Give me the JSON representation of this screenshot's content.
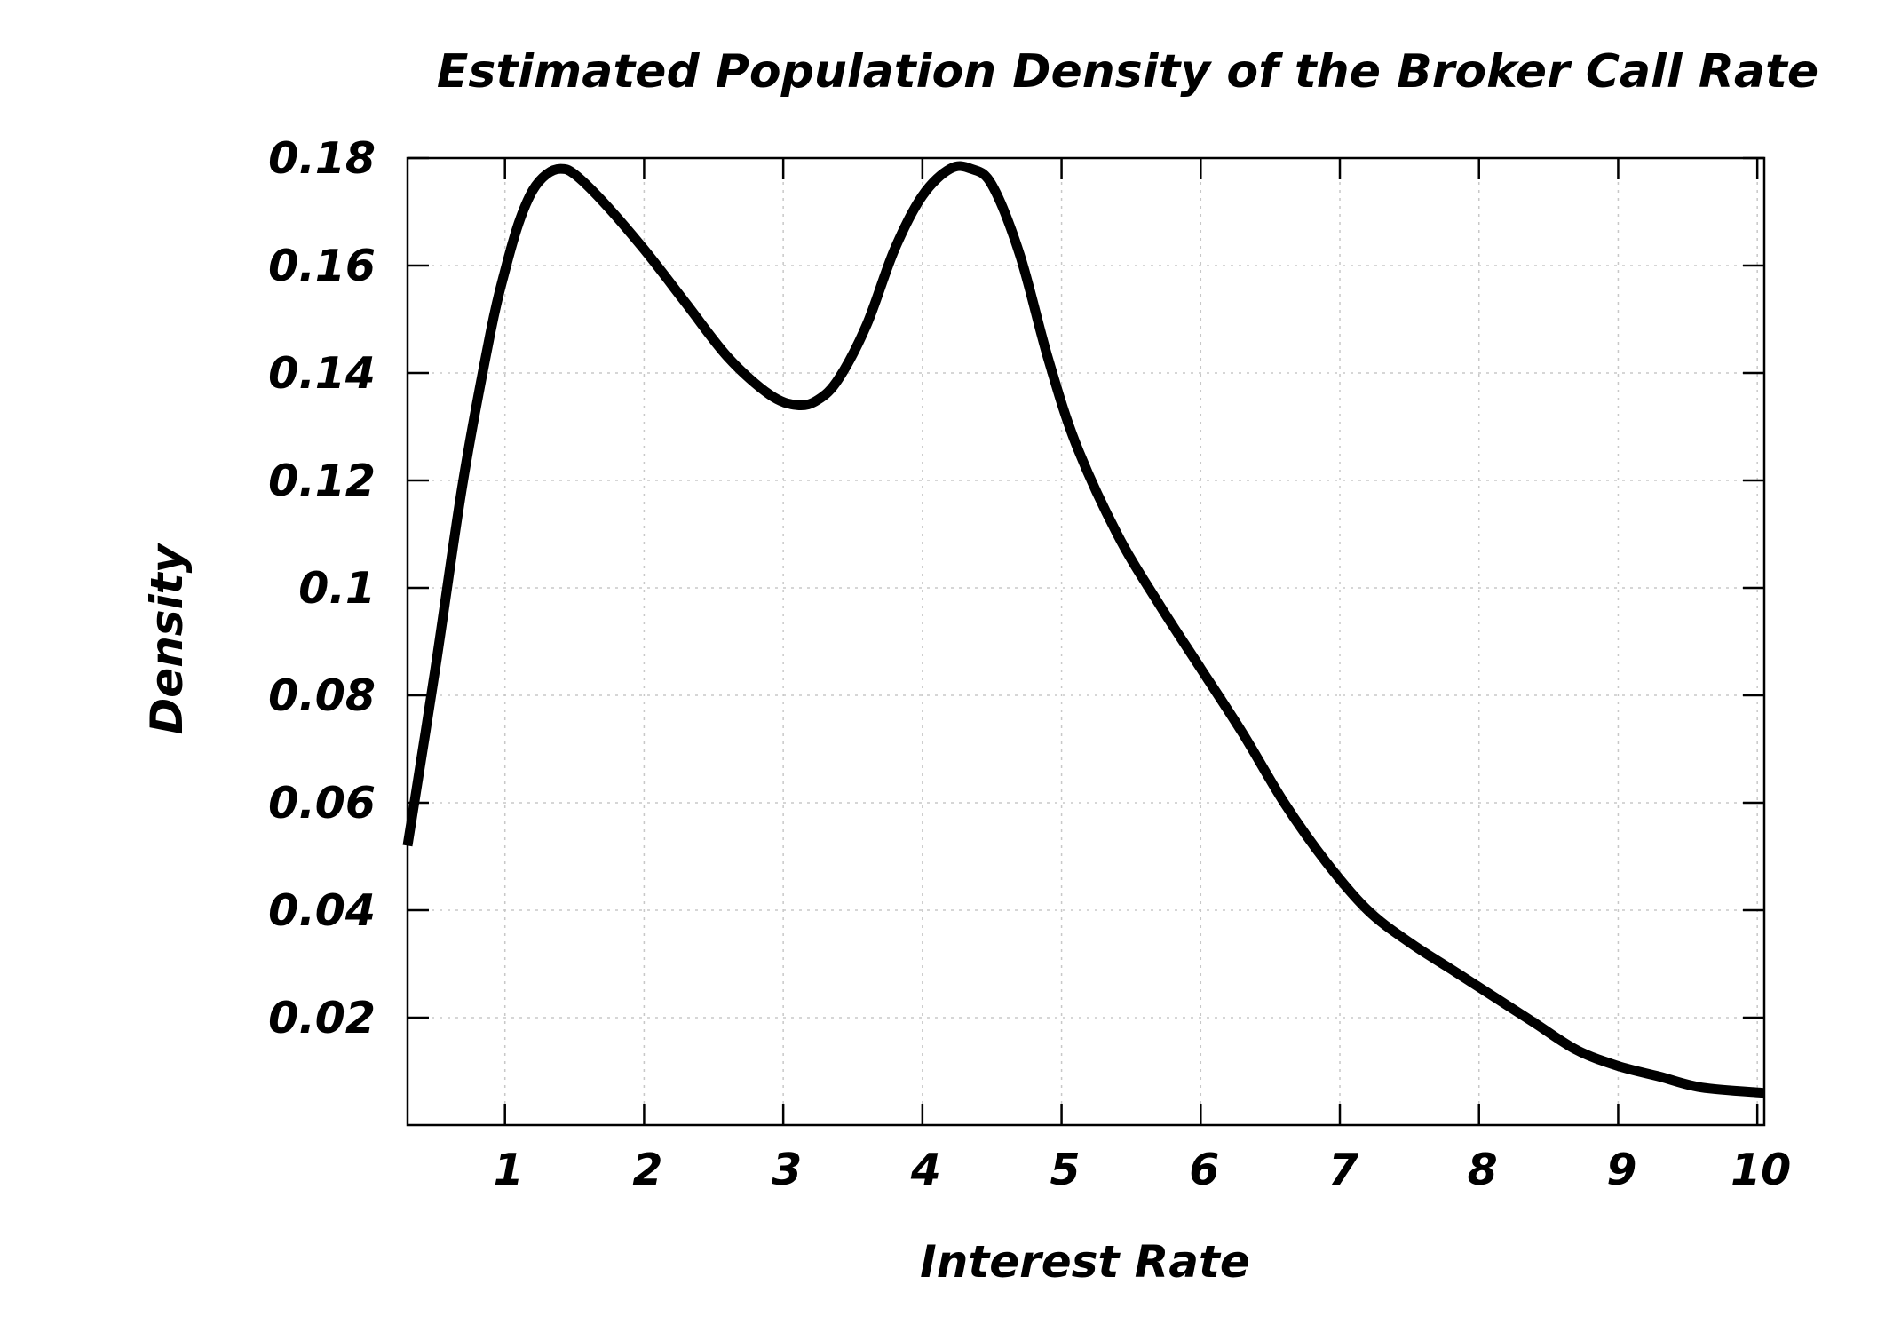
{
  "chart_data": {
    "type": "line",
    "title": "Estimated Population Density of the Broker Call Rate",
    "xlabel": "Interest Rate",
    "ylabel": "Density",
    "xlim": [
      0.3,
      10.05
    ],
    "ylim": [
      0,
      0.18
    ],
    "x_ticks": [
      1,
      2,
      3,
      4,
      5,
      6,
      7,
      8,
      9,
      10
    ],
    "x_tick_labels": [
      "1",
      "2",
      "3",
      "4",
      "5",
      "6",
      "7",
      "8",
      "9",
      "10"
    ],
    "y_ticks": [
      0.02,
      0.04,
      0.06,
      0.08,
      0.1,
      0.12,
      0.14,
      0.16,
      0.18
    ],
    "y_tick_labels": [
      "0.02",
      "0.04",
      "0.06",
      "0.08",
      "0.1",
      "0.12",
      "0.14",
      "0.16",
      "0.18"
    ],
    "grid": true,
    "series": [
      {
        "name": "density",
        "color": "#000000",
        "x": [
          0.3,
          0.5,
          0.7,
          0.9,
          1.0,
          1.1,
          1.2,
          1.3,
          1.4,
          1.5,
          1.7,
          2.0,
          2.3,
          2.6,
          2.9,
          3.1,
          3.25,
          3.4,
          3.6,
          3.8,
          4.0,
          4.2,
          4.35,
          4.5,
          4.7,
          4.9,
          5.1,
          5.4,
          5.7,
          6.0,
          6.3,
          6.6,
          6.9,
          7.2,
          7.5,
          7.8,
          8.1,
          8.4,
          8.7,
          9.0,
          9.3,
          9.6,
          10.05
        ],
        "values": [
          0.052,
          0.085,
          0.12,
          0.148,
          0.159,
          0.168,
          0.174,
          0.177,
          0.178,
          0.177,
          0.172,
          0.163,
          0.153,
          0.143,
          0.136,
          0.134,
          0.135,
          0.139,
          0.149,
          0.163,
          0.173,
          0.178,
          0.178,
          0.175,
          0.162,
          0.143,
          0.127,
          0.11,
          0.097,
          0.085,
          0.073,
          0.06,
          0.049,
          0.04,
          0.034,
          0.029,
          0.024,
          0.019,
          0.014,
          0.011,
          0.009,
          0.007,
          0.006
        ]
      }
    ]
  }
}
